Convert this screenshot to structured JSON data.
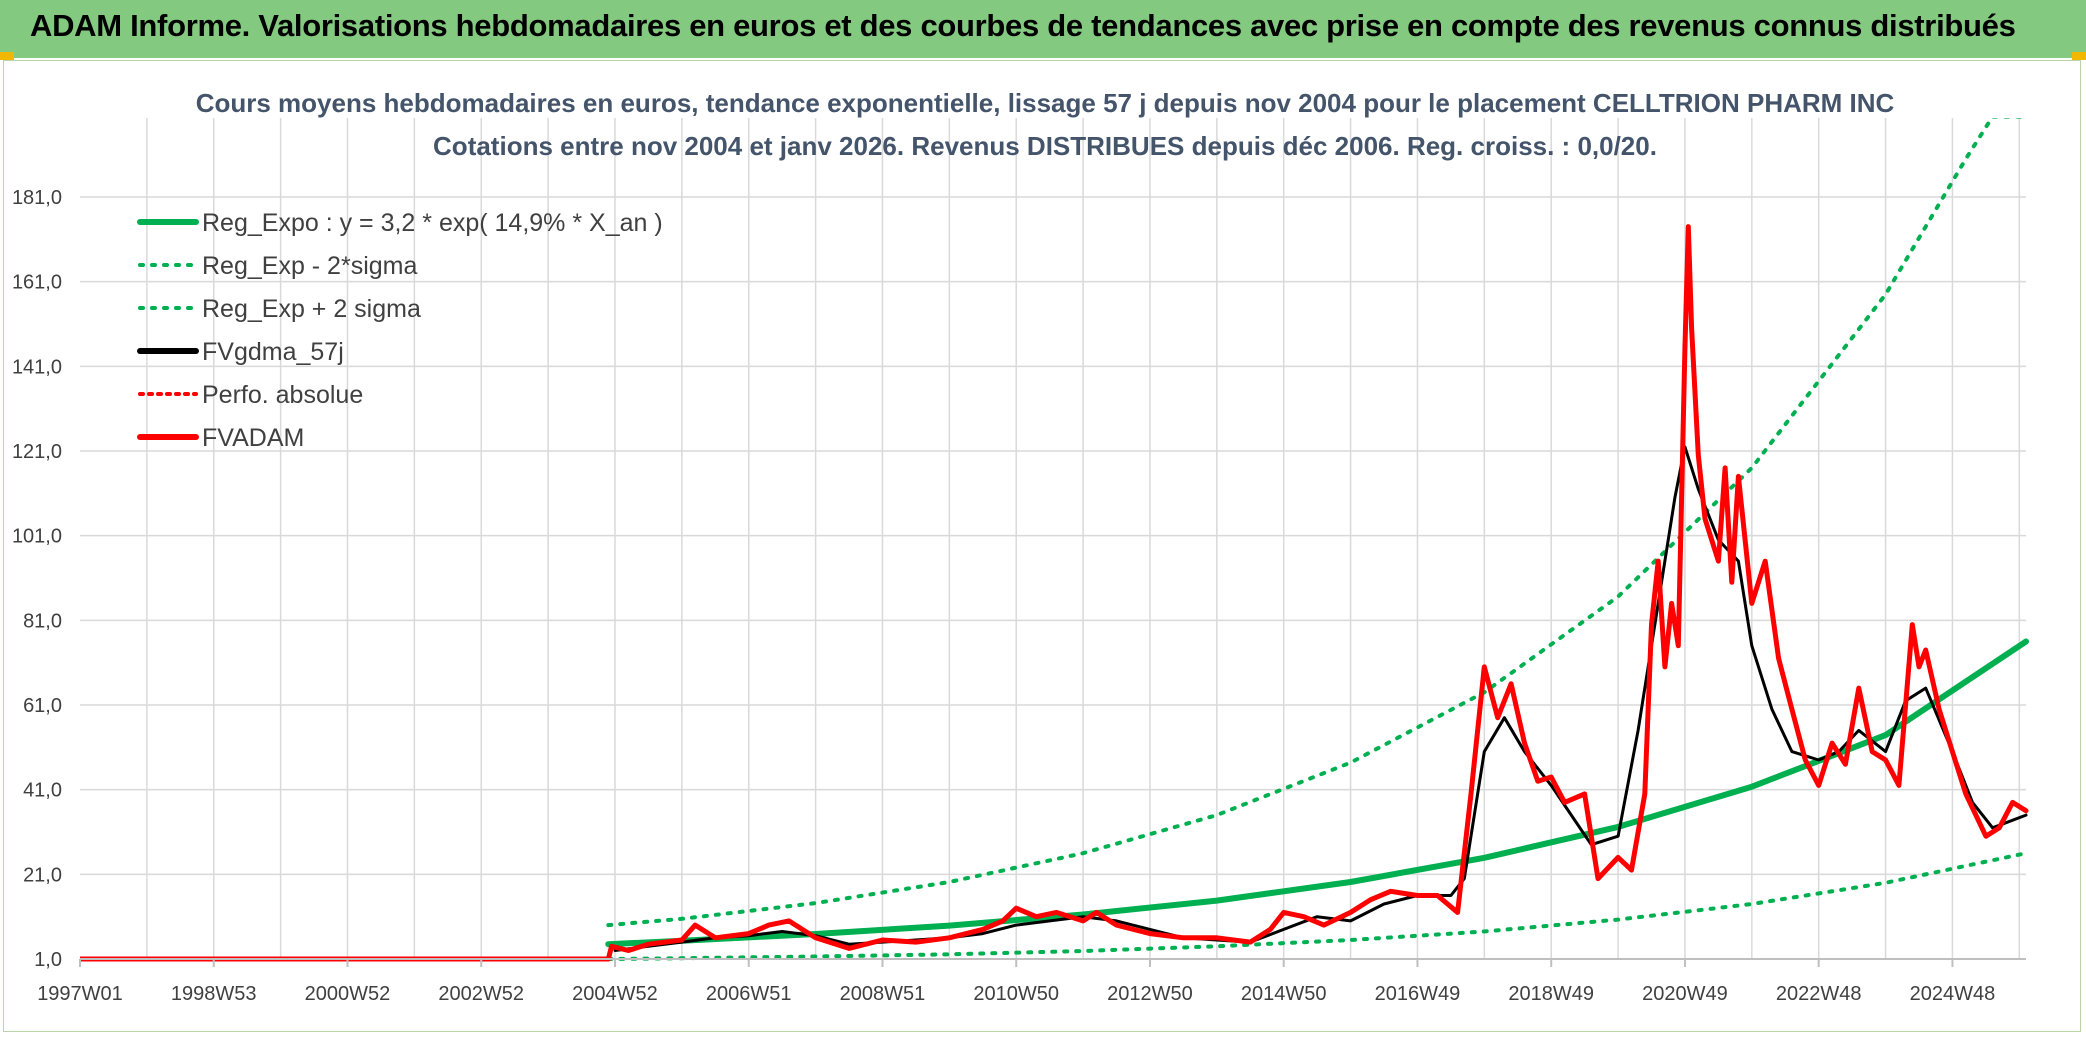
{
  "header": {
    "title": "ADAM Informe. Valorisations hebdomadaires en euros et des courbes de tendances avec prise en compte des revenus connus distribués"
  },
  "chart_data": {
    "type": "line",
    "title": "Cours moyens hebdomadaires en euros, tendance exponentielle, lissage 57 j depuis nov 2004 pour le placement CELLTRION PHARM INC",
    "subtitle": "Cotations entre nov 2004 et janv 2026. Revenus DISTRIBUES depuis déc 2006. Reg. croiss. : 0,0/20.",
    "xlabel": "",
    "ylabel": "",
    "xlim": [
      1997.0,
      2026.1
    ],
    "ylim": [
      1.0,
      200.0
    ],
    "grid": true,
    "legend_position": "top-left",
    "x_tick_labels": [
      {
        "x": 1997.0,
        "label": "1997W01"
      },
      {
        "x": 1999.0,
        "label": "1998W53"
      },
      {
        "x": 2001.0,
        "label": "2000W52"
      },
      {
        "x": 2003.0,
        "label": "2002W52"
      },
      {
        "x": 2005.0,
        "label": "2004W52"
      },
      {
        "x": 2007.0,
        "label": "2006W51"
      },
      {
        "x": 2009.0,
        "label": "2008W51"
      },
      {
        "x": 2011.0,
        "label": "2010W50"
      },
      {
        "x": 2013.0,
        "label": "2012W50"
      },
      {
        "x": 2015.0,
        "label": "2014W50"
      },
      {
        "x": 2017.0,
        "label": "2016W49"
      },
      {
        "x": 2019.0,
        "label": "2018W49"
      },
      {
        "x": 2021.0,
        "label": "2020W49"
      },
      {
        "x": 2023.0,
        "label": "2022W48"
      },
      {
        "x": 2025.0,
        "label": "2024W48"
      }
    ],
    "y_tick_labels": [
      {
        "y": 1,
        "label": "1,0"
      },
      {
        "y": 21,
        "label": "21,0"
      },
      {
        "y": 41,
        "label": "41,0"
      },
      {
        "y": 61,
        "label": "61,0"
      },
      {
        "y": 81,
        "label": "81,0"
      },
      {
        "y": 101,
        "label": "101,0"
      },
      {
        "y": 121,
        "label": "121,0"
      },
      {
        "y": 141,
        "label": "141,0"
      },
      {
        "y": 161,
        "label": "161,0"
      },
      {
        "y": 181,
        "label": "181,0"
      }
    ],
    "series": [
      {
        "name": "Reg_Expo : y = 3,2 * exp( 14,9% *  X_an )",
        "color": "#00b050",
        "style": "solid",
        "width": 6,
        "points": [
          [
            2004.9,
            4.5
          ],
          [
            2006,
            5.3
          ],
          [
            2008,
            6.9
          ],
          [
            2010,
            8.9
          ],
          [
            2012,
            11.5
          ],
          [
            2014,
            14.8
          ],
          [
            2016,
            19.2
          ],
          [
            2018,
            24.9
          ],
          [
            2020,
            32.2
          ],
          [
            2022,
            41.7
          ],
          [
            2024,
            53.9
          ],
          [
            2026.1,
            76.0
          ]
        ]
      },
      {
        "name": "Reg_Exp - 2*sigma",
        "color": "#00b050",
        "style": "dotted",
        "width": 4,
        "points": [
          [
            2004.9,
            1.0
          ],
          [
            2006,
            1.2
          ],
          [
            2008,
            1.6
          ],
          [
            2010,
            2.1
          ],
          [
            2012,
            2.9
          ],
          [
            2014,
            4.0
          ],
          [
            2016,
            5.5
          ],
          [
            2018,
            7.5
          ],
          [
            2020,
            10.3
          ],
          [
            2022,
            14.0
          ],
          [
            2024,
            19.0
          ],
          [
            2026.1,
            26.0
          ]
        ]
      },
      {
        "name": "Reg_Exp + 2 sigma",
        "color": "#00b050",
        "style": "dotted",
        "width": 4,
        "points": [
          [
            2004.9,
            9.0
          ],
          [
            2006,
            10.5
          ],
          [
            2008,
            14.2
          ],
          [
            2010,
            19.2
          ],
          [
            2012,
            26.0
          ],
          [
            2014,
            35.0
          ],
          [
            2016,
            47.4
          ],
          [
            2018,
            64.0
          ],
          [
            2020,
            86.6
          ],
          [
            2022,
            117.0
          ],
          [
            2024,
            158.0
          ],
          [
            2025.2,
            190.0
          ],
          [
            2025.6,
            200.0
          ],
          [
            2026.1,
            200.0
          ]
        ]
      },
      {
        "name": "FVgdma_57j",
        "color": "#000000",
        "style": "solid",
        "width": 3,
        "points": [
          [
            2005.0,
            3.0
          ],
          [
            2005.5,
            4.0
          ],
          [
            2006.0,
            5.0
          ],
          [
            2006.5,
            6.0
          ],
          [
            2007.0,
            6.5
          ],
          [
            2007.5,
            7.5
          ],
          [
            2008.0,
            6.5
          ],
          [
            2008.5,
            4.5
          ],
          [
            2009.0,
            5.0
          ],
          [
            2009.5,
            5.5
          ],
          [
            2010.0,
            6.0
          ],
          [
            2010.5,
            7.0
          ],
          [
            2011.0,
            9.0
          ],
          [
            2011.5,
            10.0
          ],
          [
            2012.0,
            11.0
          ],
          [
            2012.5,
            10.0
          ],
          [
            2013.0,
            8.0
          ],
          [
            2013.5,
            6.0
          ],
          [
            2014.0,
            5.5
          ],
          [
            2014.5,
            5.0
          ],
          [
            2015.0,
            8.0
          ],
          [
            2015.5,
            11.0
          ],
          [
            2016.0,
            10.0
          ],
          [
            2016.5,
            14.0
          ],
          [
            2017.0,
            16.0
          ],
          [
            2017.5,
            16.0
          ],
          [
            2017.7,
            20.0
          ],
          [
            2018.0,
            50.0
          ],
          [
            2018.3,
            58.0
          ],
          [
            2018.6,
            50.0
          ],
          [
            2019.0,
            42.0
          ],
          [
            2019.3,
            35.0
          ],
          [
            2019.6,
            28.0
          ],
          [
            2020.0,
            30.0
          ],
          [
            2020.3,
            55.0
          ],
          [
            2020.6,
            85.0
          ],
          [
            2020.85,
            110.0
          ],
          [
            2021.0,
            122.0
          ],
          [
            2021.2,
            112.0
          ],
          [
            2021.5,
            100.0
          ],
          [
            2021.8,
            95.0
          ],
          [
            2022.0,
            75.0
          ],
          [
            2022.3,
            60.0
          ],
          [
            2022.6,
            50.0
          ],
          [
            2023.0,
            48.0
          ],
          [
            2023.3,
            50.0
          ],
          [
            2023.6,
            55.0
          ],
          [
            2024.0,
            50.0
          ],
          [
            2024.3,
            62.0
          ],
          [
            2024.6,
            65.0
          ],
          [
            2025.0,
            50.0
          ],
          [
            2025.3,
            38.0
          ],
          [
            2025.6,
            32.0
          ],
          [
            2026.1,
            35.0
          ]
        ]
      },
      {
        "name": "Perfo. absolue",
        "color": "#ff0000",
        "style": "dotted",
        "width": 3,
        "points": []
      },
      {
        "name": "FVADAM",
        "color": "#ff0000",
        "style": "solid",
        "width": 5,
        "points": [
          [
            1997.0,
            1.0
          ],
          [
            2004.9,
            1.0
          ],
          [
            2004.95,
            4.0
          ],
          [
            2005.2,
            3.0
          ],
          [
            2005.5,
            4.5
          ],
          [
            2006.0,
            5.5
          ],
          [
            2006.2,
            9.0
          ],
          [
            2006.5,
            6.0
          ],
          [
            2007.0,
            7.0
          ],
          [
            2007.3,
            9.0
          ],
          [
            2007.6,
            10.0
          ],
          [
            2008.0,
            6.0
          ],
          [
            2008.5,
            3.5
          ],
          [
            2009.0,
            5.5
          ],
          [
            2009.5,
            5.0
          ],
          [
            2010.0,
            6.0
          ],
          [
            2010.5,
            8.0
          ],
          [
            2010.8,
            10.0
          ],
          [
            2011.0,
            13.0
          ],
          [
            2011.3,
            11.0
          ],
          [
            2011.6,
            12.0
          ],
          [
            2012.0,
            10.0
          ],
          [
            2012.2,
            12.0
          ],
          [
            2012.5,
            9.0
          ],
          [
            2013.0,
            7.0
          ],
          [
            2013.5,
            6.0
          ],
          [
            2014.0,
            6.0
          ],
          [
            2014.5,
            5.0
          ],
          [
            2014.8,
            8.0
          ],
          [
            2015.0,
            12.0
          ],
          [
            2015.3,
            11.0
          ],
          [
            2015.6,
            9.0
          ],
          [
            2016.0,
            12.0
          ],
          [
            2016.3,
            15.0
          ],
          [
            2016.6,
            17.0
          ],
          [
            2017.0,
            16.0
          ],
          [
            2017.3,
            16.0
          ],
          [
            2017.6,
            12.0
          ],
          [
            2017.8,
            40.0
          ],
          [
            2018.0,
            70.0
          ],
          [
            2018.2,
            58.0
          ],
          [
            2018.4,
            66.0
          ],
          [
            2018.6,
            52.0
          ],
          [
            2018.8,
            43.0
          ],
          [
            2019.0,
            44.0
          ],
          [
            2019.2,
            38.0
          ],
          [
            2019.5,
            40.0
          ],
          [
            2019.7,
            20.0
          ],
          [
            2020.0,
            25.0
          ],
          [
            2020.2,
            22.0
          ],
          [
            2020.4,
            40.0
          ],
          [
            2020.5,
            80.0
          ],
          [
            2020.6,
            95.0
          ],
          [
            2020.7,
            70.0
          ],
          [
            2020.8,
            85.0
          ],
          [
            2020.9,
            75.0
          ],
          [
            2021.0,
            145.0
          ],
          [
            2021.05,
            174.0
          ],
          [
            2021.1,
            150.0
          ],
          [
            2021.2,
            120.0
          ],
          [
            2021.3,
            105.0
          ],
          [
            2021.5,
            95.0
          ],
          [
            2021.6,
            117.0
          ],
          [
            2021.7,
            90.0
          ],
          [
            2021.8,
            115.0
          ],
          [
            2022.0,
            85.0
          ],
          [
            2022.2,
            95.0
          ],
          [
            2022.4,
            72.0
          ],
          [
            2022.6,
            60.0
          ],
          [
            2022.8,
            48.0
          ],
          [
            2023.0,
            42.0
          ],
          [
            2023.2,
            52.0
          ],
          [
            2023.4,
            47.0
          ],
          [
            2023.6,
            65.0
          ],
          [
            2023.8,
            50.0
          ],
          [
            2024.0,
            48.0
          ],
          [
            2024.2,
            42.0
          ],
          [
            2024.4,
            80.0
          ],
          [
            2024.5,
            70.0
          ],
          [
            2024.6,
            74.0
          ],
          [
            2024.8,
            60.0
          ],
          [
            2025.0,
            50.0
          ],
          [
            2025.2,
            40.0
          ],
          [
            2025.5,
            30.0
          ],
          [
            2025.7,
            32.0
          ],
          [
            2025.9,
            38.0
          ],
          [
            2026.1,
            36.0
          ]
        ]
      }
    ]
  }
}
